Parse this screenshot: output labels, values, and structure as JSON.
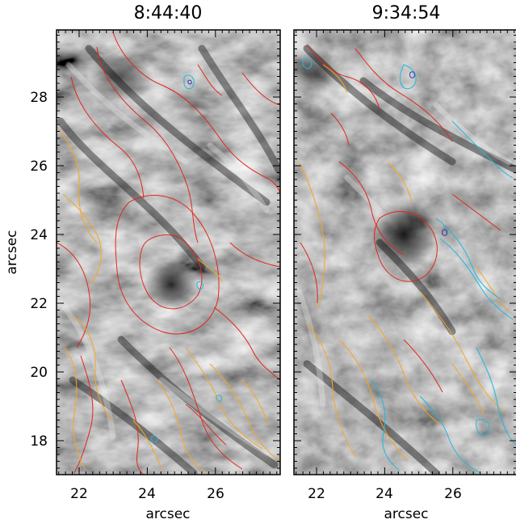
{
  "figure": {
    "panels": [
      {
        "title": "8:44:40"
      },
      {
        "title": "9:34:54"
      }
    ],
    "x_axis": {
      "label": "arcsec",
      "ticks": [
        "22",
        "24",
        "26"
      ]
    },
    "y_axis": {
      "label": "arcsec",
      "ticks": [
        "28",
        "26",
        "24",
        "22",
        "20",
        "18"
      ]
    },
    "contour_colors": {
      "red": "#e3261c",
      "orange": "#f5a623",
      "cyan": "#1fb7e0",
      "blue": "#2a3cb0"
    }
  }
}
